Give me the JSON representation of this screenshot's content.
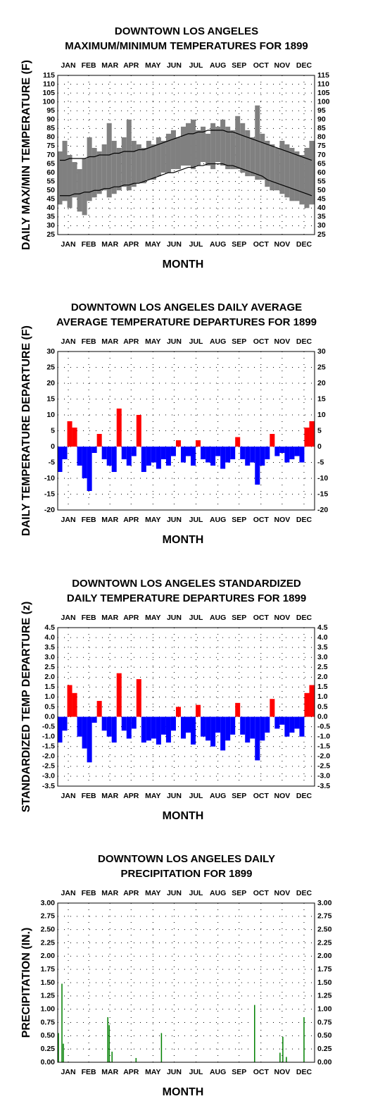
{
  "chart_data": [
    {
      "type": "range",
      "title": [
        "DOWNTOWN LOS ANGELES",
        "MAXIMUM/MINIMUM TEMPERATURES FOR 1899"
      ],
      "ylabel": "DAILY MAX/MIN TEMPERATURE (F)",
      "xlabel": "MONTH",
      "x": [
        4,
        11,
        18,
        25,
        32,
        39,
        46,
        53,
        60,
        67,
        74,
        81,
        88,
        95,
        102,
        109,
        116,
        123,
        130,
        137,
        144,
        151,
        158,
        165,
        172,
        179,
        186,
        193,
        200,
        207,
        214,
        221,
        228,
        235,
        242,
        249,
        256,
        263,
        270,
        277,
        284,
        291,
        298,
        305,
        312,
        319,
        326,
        333,
        340,
        347,
        354,
        361
      ],
      "series": [
        {
          "color": "#808080",
          "values": [
            72,
            78,
            70,
            66,
            62,
            68,
            80,
            74,
            72,
            76,
            88,
            78,
            74,
            80,
            90,
            78,
            76,
            74,
            78,
            76,
            80,
            78,
            82,
            84,
            80,
            86,
            88,
            90,
            84,
            86,
            82,
            88,
            86,
            90,
            86,
            84,
            92,
            88,
            84,
            80,
            98,
            82,
            78,
            76,
            74,
            78,
            76,
            74,
            72,
            70,
            74,
            78
          ]
        },
        {
          "color": "#808080",
          "values": [
            42,
            44,
            40,
            46,
            38,
            36,
            44,
            46,
            48,
            50,
            46,
            48,
            50,
            52,
            50,
            52,
            54,
            54,
            56,
            56,
            58,
            60,
            60,
            62,
            62,
            64,
            64,
            62,
            64,
            66,
            64,
            62,
            66,
            64,
            62,
            62,
            62,
            60,
            58,
            58,
            56,
            56,
            52,
            50,
            50,
            48,
            46,
            44,
            44,
            42,
            40,
            42
          ]
        },
        {
          "color": "#000000",
          "values": [
            67,
            67,
            68,
            68,
            68,
            68,
            69,
            69,
            70,
            70,
            70,
            71,
            71,
            72,
            72,
            72,
            73,
            73,
            74,
            75,
            76,
            77,
            78,
            79,
            80,
            81,
            82,
            82,
            83,
            83,
            84,
            84,
            84,
            84,
            83,
            83,
            82,
            81,
            80,
            79,
            78,
            77,
            76,
            75,
            74,
            73,
            72,
            71,
            70,
            69,
            68,
            67
          ]
        },
        {
          "color": "#000000",
          "values": [
            47,
            47,
            47,
            48,
            48,
            49,
            49,
            50,
            50,
            51,
            51,
            52,
            52,
            53,
            53,
            54,
            54,
            55,
            56,
            57,
            58,
            59,
            60,
            60,
            61,
            62,
            63,
            63,
            64,
            64,
            65,
            65,
            65,
            65,
            64,
            64,
            63,
            62,
            61,
            60,
            59,
            58,
            56,
            55,
            54,
            53,
            52,
            51,
            50,
            49,
            48,
            47
          ]
        }
      ],
      "xlim": [
        1,
        365
      ],
      "xticks": [
        {
          "value": 16,
          "label": "JAN"
        },
        {
          "value": 45,
          "label": "FEB"
        },
        {
          "value": 75,
          "label": "MAR"
        },
        {
          "value": 105,
          "label": "APR"
        },
        {
          "value": 136,
          "label": "MAY"
        },
        {
          "value": 166,
          "label": "JUN"
        },
        {
          "value": 197,
          "label": "JUL"
        },
        {
          "value": 228,
          "label": "AUG"
        },
        {
          "value": 258,
          "label": "SEP"
        },
        {
          "value": 289,
          "label": "OCT"
        },
        {
          "value": 319,
          "label": "NOV"
        },
        {
          "value": 350,
          "label": "DEC"
        }
      ],
      "ylim": [
        25,
        115
      ],
      "yticks": [
        25,
        30,
        35,
        40,
        45,
        50,
        55,
        60,
        65,
        70,
        75,
        80,
        85,
        90,
        95,
        100,
        105,
        110,
        115
      ],
      "grid": true
    },
    {
      "type": "bar",
      "title": [
        "DOWNTOWN LOS ANGELES DAILY AVERAGE",
        "AVERAGE TEMPERATURE DEPARTURES FOR 1899"
      ],
      "ylabel": "DAILY TEMPERATURE DEPARTURE (F)",
      "xlabel": "MONTH",
      "x": [
        4,
        11,
        18,
        25,
        32,
        39,
        46,
        53,
        60,
        67,
        74,
        81,
        88,
        95,
        102,
        109,
        116,
        123,
        130,
        137,
        144,
        151,
        158,
        165,
        172,
        179,
        186,
        193,
        200,
        207,
        214,
        221,
        228,
        235,
        242,
        249,
        256,
        263,
        270,
        277,
        284,
        291,
        298,
        305,
        312,
        319,
        326,
        333,
        340,
        347,
        354,
        361
      ],
      "values": [
        -8,
        -4,
        8,
        6,
        -6,
        -10,
        -14,
        -2,
        4,
        -4,
        -6,
        -8,
        12,
        -4,
        -6,
        -3,
        10,
        -8,
        -6,
        -5,
        -7,
        -4,
        -6,
        -3,
        2,
        -5,
        -3,
        -6,
        2,
        -4,
        -5,
        -6,
        -3,
        -7,
        -5,
        -4,
        3,
        -4,
        -6,
        -5,
        -12,
        -6,
        -4,
        4,
        -3,
        -2,
        -5,
        -4,
        -3,
        -5,
        6,
        8
      ],
      "colors": {
        "above": "#ff0000",
        "below": "#0000ff"
      },
      "xlim": [
        1,
        365
      ],
      "xticks": [
        {
          "value": 16,
          "label": "JAN"
        },
        {
          "value": 45,
          "label": "FEB"
        },
        {
          "value": 75,
          "label": "MAR"
        },
        {
          "value": 105,
          "label": "APR"
        },
        {
          "value": 136,
          "label": "MAY"
        },
        {
          "value": 166,
          "label": "JUN"
        },
        {
          "value": 197,
          "label": "JUL"
        },
        {
          "value": 228,
          "label": "AUG"
        },
        {
          "value": 258,
          "label": "SEP"
        },
        {
          "value": 289,
          "label": "OCT"
        },
        {
          "value": 319,
          "label": "NOV"
        },
        {
          "value": 350,
          "label": "DEC"
        }
      ],
      "ylim": [
        -20,
        30
      ],
      "yticks": [
        -20,
        -15,
        -10,
        -5,
        0,
        5,
        10,
        15,
        20,
        25,
        30
      ],
      "grid": true
    },
    {
      "type": "bar",
      "title": [
        "DOWNTOWN LOS ANGELES STANDARDIZED",
        "DAILY TEMPERATURE DEPARTURES FOR 1899"
      ],
      "ylabel": "STANDARDIZED TEMP DEPARTURE (z)",
      "xlabel": "MONTH",
      "x": [
        4,
        11,
        18,
        25,
        32,
        39,
        46,
        53,
        60,
        67,
        74,
        81,
        88,
        95,
        102,
        109,
        116,
        123,
        130,
        137,
        144,
        151,
        158,
        165,
        172,
        179,
        186,
        193,
        200,
        207,
        214,
        221,
        228,
        235,
        242,
        249,
        256,
        263,
        270,
        277,
        284,
        291,
        298,
        305,
        312,
        319,
        326,
        333,
        340,
        347,
        354,
        361
      ],
      "values": [
        -1.3,
        -0.7,
        1.6,
        1.2,
        -1.0,
        -1.6,
        -2.3,
        -0.3,
        0.8,
        -0.7,
        -1.0,
        -1.3,
        2.2,
        -0.7,
        -1.1,
        -0.6,
        1.9,
        -1.3,
        -1.2,
        -1.1,
        -1.4,
        -0.9,
        -1.3,
        -0.7,
        0.5,
        -1.1,
        -0.8,
        -1.4,
        0.6,
        -1.0,
        -1.2,
        -1.5,
        -0.8,
        -1.7,
        -1.2,
        -0.9,
        0.7,
        -0.9,
        -1.3,
        -1.1,
        -2.2,
        -1.2,
        -0.8,
        0.9,
        -0.6,
        -0.4,
        -1.0,
        -0.8,
        -0.6,
        -1.0,
        1.2,
        1.6
      ],
      "colors": {
        "above": "#ff0000",
        "below": "#0000ff"
      },
      "xlim": [
        1,
        365
      ],
      "xticks": [
        {
          "value": 16,
          "label": "JAN"
        },
        {
          "value": 45,
          "label": "FEB"
        },
        {
          "value": 75,
          "label": "MAR"
        },
        {
          "value": 105,
          "label": "APR"
        },
        {
          "value": 136,
          "label": "MAY"
        },
        {
          "value": 166,
          "label": "JUN"
        },
        {
          "value": 197,
          "label": "JUL"
        },
        {
          "value": 228,
          "label": "AUG"
        },
        {
          "value": 258,
          "label": "SEP"
        },
        {
          "value": 289,
          "label": "OCT"
        },
        {
          "value": 319,
          "label": "NOV"
        },
        {
          "value": 350,
          "label": "DEC"
        }
      ],
      "ylim": [
        -3.5,
        4.5
      ],
      "yticks": [
        -3.5,
        {
          "value": -3,
          "label": "-3.0"
        },
        -2.5,
        {
          "value": -2,
          "label": "-2.0"
        },
        -1.5,
        {
          "value": -1,
          "label": "-1.0"
        },
        -0.5,
        {
          "value": 0,
          "label": "0.0"
        },
        0.5,
        {
          "value": 1,
          "label": "1.0"
        },
        1.5,
        {
          "value": 2,
          "label": "2.0"
        },
        2.5,
        {
          "value": 3,
          "label": "3.0"
        },
        3.5,
        {
          "value": 4,
          "label": "4.0"
        },
        4.5
      ],
      "grid": true
    },
    {
      "type": "bar",
      "title": [
        "DOWNTOWN LOS ANGELES DAILY",
        "PRECIPITATION FOR 1899"
      ],
      "ylabel": "PRECIPITATION (IN.)",
      "xlabel": "MONTH",
      "x": [
        2,
        7,
        9,
        72,
        74,
        78,
        112,
        148,
        280,
        316,
        320,
        325,
        350
      ],
      "values": [
        0.55,
        1.48,
        0.35,
        0.85,
        0.7,
        0.2,
        0.08,
        0.55,
        1.08,
        0.18,
        0.48,
        0.1,
        0.85
      ],
      "color": "#008000",
      "xlim": [
        1,
        365
      ],
      "xticks": [
        {
          "value": 16,
          "label": "JAN"
        },
        {
          "value": 45,
          "label": "FEB"
        },
        {
          "value": 75,
          "label": "MAR"
        },
        {
          "value": 105,
          "label": "APR"
        },
        {
          "value": 136,
          "label": "MAY"
        },
        {
          "value": 166,
          "label": "JUN"
        },
        {
          "value": 197,
          "label": "JUL"
        },
        {
          "value": 228,
          "label": "AUG"
        },
        {
          "value": 258,
          "label": "SEP"
        },
        {
          "value": 289,
          "label": "OCT"
        },
        {
          "value": 319,
          "label": "NOV"
        },
        {
          "value": 350,
          "label": "DEC"
        }
      ],
      "ylim": [
        0,
        3
      ],
      "yticks": [
        {
          "value": 0,
          "label": "0.00"
        },
        {
          "value": 0.25,
          "label": "0.25"
        },
        {
          "value": 0.5,
          "label": "0.50"
        },
        {
          "value": 0.75,
          "label": "0.75"
        },
        {
          "value": 1,
          "label": "1.00"
        },
        {
          "value": 1.25,
          "label": "1.25"
        },
        {
          "value": 1.5,
          "label": "1.50"
        },
        {
          "value": 1.75,
          "label": "1.75"
        },
        {
          "value": 2,
          "label": "2.00"
        },
        {
          "value": 2.25,
          "label": "2.25"
        },
        {
          "value": 2.5,
          "label": "2.50"
        },
        {
          "value": 2.75,
          "label": "2.75"
        },
        {
          "value": 3,
          "label": "3.00"
        }
      ],
      "grid": true
    }
  ]
}
